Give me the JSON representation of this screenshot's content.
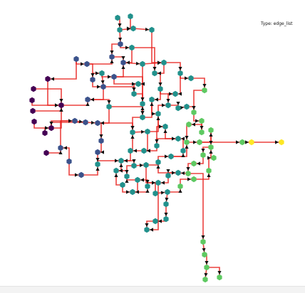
{
  "caption": "Type: edge_list",
  "colors": {
    "edge": "#e8211d",
    "arrowhead": "#111111",
    "node_scale": [
      "#440154",
      "#3b528b",
      "#21918c",
      "#5ec962",
      "#fde725"
    ],
    "background": "#ffffff"
  }
}
